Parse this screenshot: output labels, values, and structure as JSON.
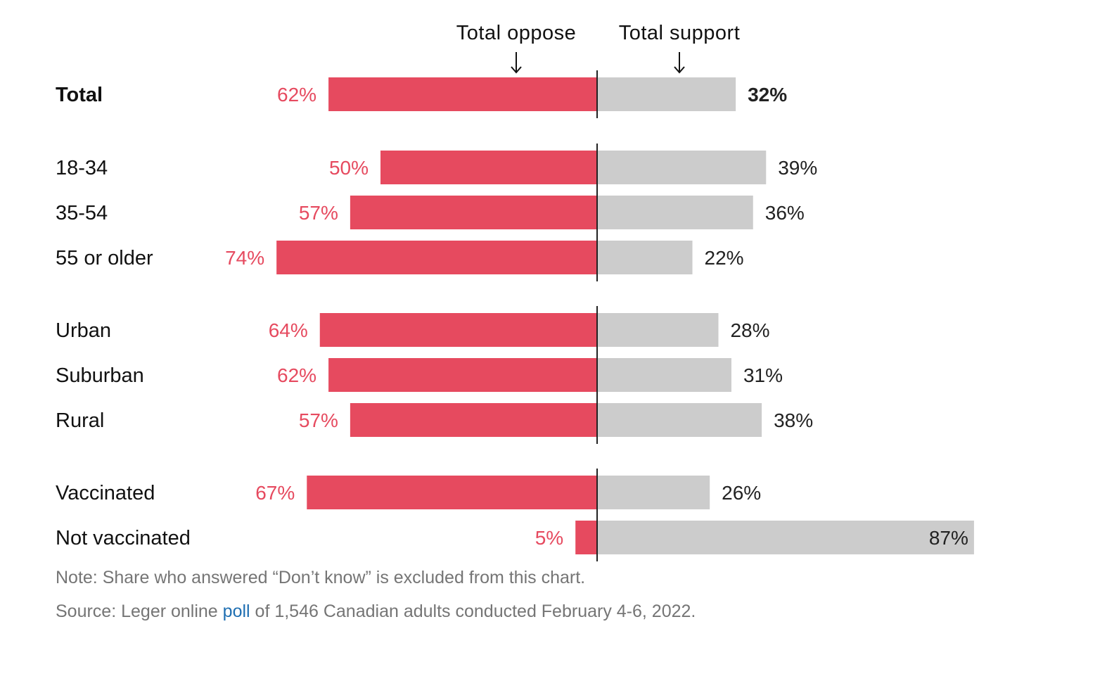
{
  "chart_data": {
    "type": "bar",
    "orientation": "horizontal-diverging",
    "headers": {
      "oppose": "Total oppose",
      "support": "Total support"
    },
    "categories": [
      "Total",
      "18-34",
      "35-54",
      "55 or older",
      "Urban",
      "Suburban",
      "Rural",
      "Vaccinated",
      "Not vaccinated"
    ],
    "groups": [
      [
        0
      ],
      [
        1,
        2,
        3
      ],
      [
        4,
        5,
        6
      ],
      [
        7,
        8
      ]
    ],
    "series": [
      {
        "key": "oppose",
        "values": [
          62,
          50,
          57,
          74,
          64,
          62,
          57,
          67,
          5
        ],
        "labels": [
          "62%",
          "50%",
          "57%",
          "74%",
          "64%",
          "62%",
          "57%",
          "67%",
          "5%"
        ]
      },
      {
        "key": "support",
        "values": [
          32,
          39,
          36,
          22,
          28,
          31,
          38,
          26,
          87
        ],
        "labels": [
          "32%",
          "39%",
          "36%",
          "22%",
          "28%",
          "31%",
          "38%",
          "26%",
          "87%"
        ]
      }
    ],
    "colors": {
      "oppose": "#e64a5f",
      "support": "#cccccc",
      "axis": "#222222",
      "support_text": "#222222"
    }
  },
  "footer": {
    "note": "Note: Share who answered “Don’t know” is excluded from this chart.",
    "source_prefix": "Source: Leger online ",
    "source_link": "poll",
    "source_suffix": " of 1,546 Canadian adults conducted February 4-6, 2022."
  }
}
